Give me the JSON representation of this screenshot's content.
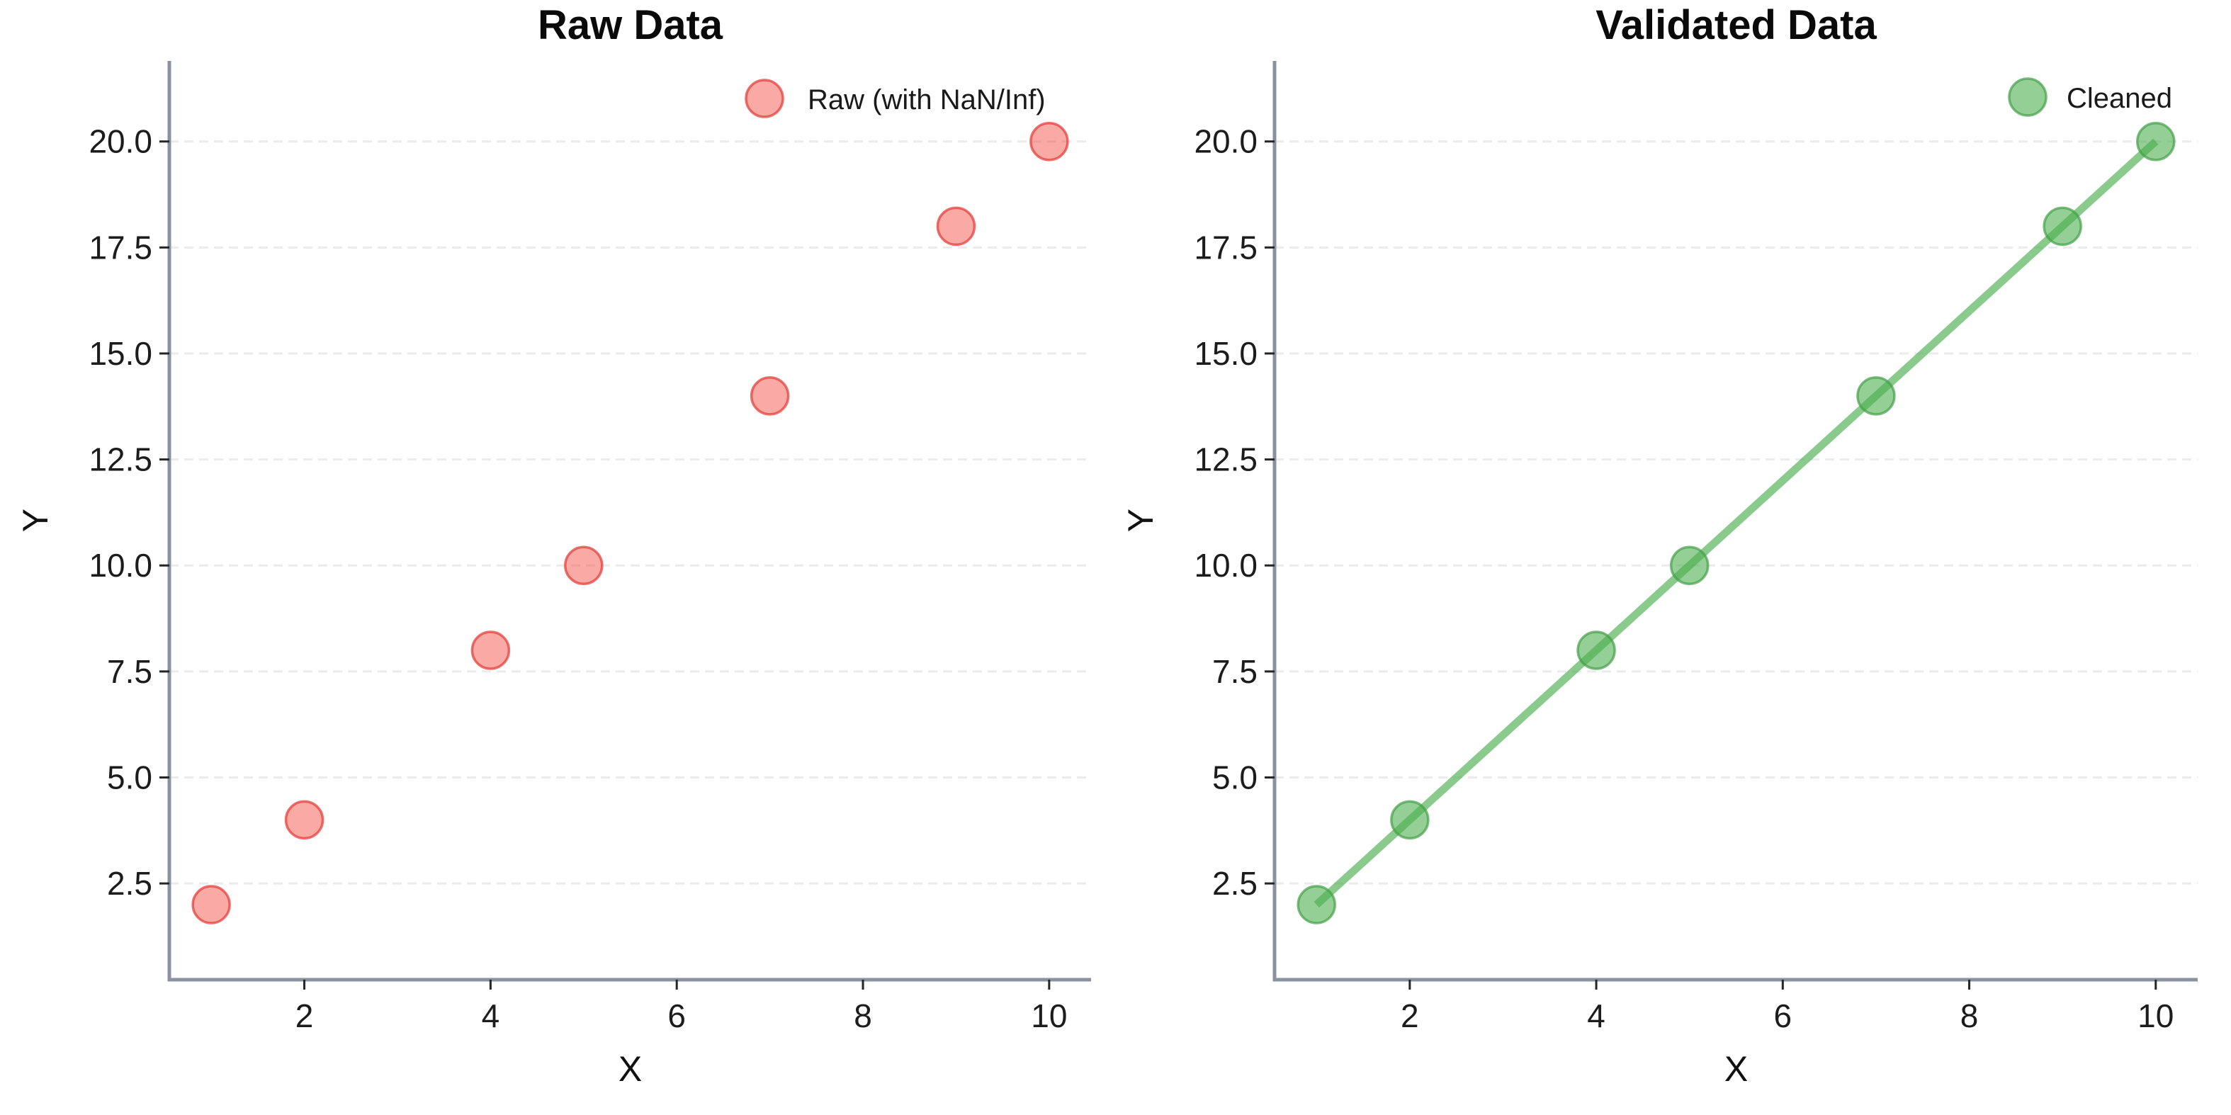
{
  "figure": {
    "background": "#ffffff"
  },
  "palette": {
    "spine": "#8A92A0",
    "grid": "#EBEBEB",
    "tick_mark": "#262626",
    "tick_label": "#1C1C1C",
    "title_color": "#0A0A0A",
    "axis_label_color": "#111111",
    "legend_text_color": "#1A1A1A"
  },
  "chart_data": [
    {
      "name": "chart-raw-data",
      "type": "scatter",
      "title": "Raw Data",
      "xlabel": "X",
      "ylabel": "Y",
      "legend": {
        "label": "Raw (with NaN/Inf)",
        "position": "upper right",
        "frame": false
      },
      "x": [
        1,
        2,
        4,
        5,
        7,
        9,
        10
      ],
      "y": [
        2,
        4,
        8,
        10,
        14,
        18,
        20
      ],
      "show_line": false,
      "xticks": [
        2,
        4,
        6,
        8,
        10
      ],
      "xtick_labels": [
        "2",
        "4",
        "6",
        "8",
        "10"
      ],
      "yticks": [
        2.5,
        5.0,
        7.5,
        10.0,
        12.5,
        15.0,
        17.5,
        20.0
      ],
      "ytick_labels": [
        "2.5",
        "5.0",
        "7.5",
        "10.0",
        "12.5",
        "15.0",
        "17.5",
        "20.0"
      ],
      "xlim": [
        0.55,
        10.45
      ],
      "ylim": [
        0.23,
        21.9
      ],
      "grid": "horizontal-dashed",
      "colors": {
        "marker_fill": "#F4433673",
        "marker_edge": "#E53935B8",
        "line": "#4CAF50A6"
      }
    },
    {
      "name": "chart-validated-data",
      "type": "scatter",
      "title": "Validated Data",
      "xlabel": "X",
      "ylabel": "Y",
      "legend": {
        "label": "Cleaned",
        "position": "upper right",
        "frame": false
      },
      "x": [
        1,
        2,
        4,
        5,
        7,
        9,
        10
      ],
      "y": [
        2,
        4,
        8,
        10,
        14,
        18,
        20
      ],
      "show_line": true,
      "xticks": [
        2,
        4,
        6,
        8,
        10
      ],
      "xtick_labels": [
        "2",
        "4",
        "6",
        "8",
        "10"
      ],
      "yticks": [
        2.5,
        5.0,
        7.5,
        10.0,
        12.5,
        15.0,
        17.5,
        20.0
      ],
      "ytick_labels": [
        "2.5",
        "5.0",
        "7.5",
        "10.0",
        "12.5",
        "15.0",
        "17.5",
        "20.0"
      ],
      "xlim": [
        0.55,
        10.45
      ],
      "ylim": [
        0.23,
        21.9
      ],
      "grid": "horizontal-dashed",
      "colors": {
        "marker_fill": "#4CAF5099",
        "marker_edge": "#43A047B3",
        "line": "#4CAF50A6"
      }
    }
  ]
}
